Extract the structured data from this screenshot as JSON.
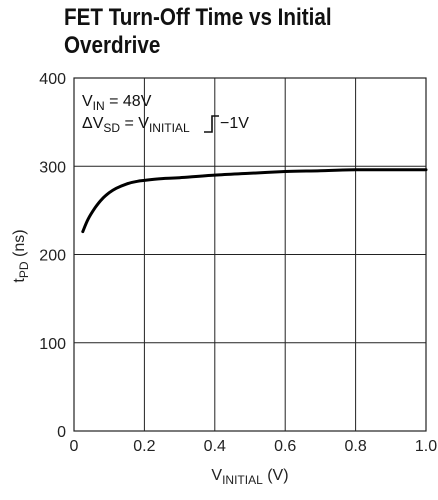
{
  "chart_data": {
    "type": "line",
    "title_lines": [
      "FET Turn-Off Time vs Initial",
      "Overdrive"
    ],
    "xlabel": {
      "main": "V",
      "sub": "INITIAL",
      "unit": " (V)"
    },
    "ylabel": {
      "main": "t",
      "sub": "PD",
      "unit": " (ns)"
    },
    "xlim": [
      0,
      1.0
    ],
    "ylim": [
      0,
      400
    ],
    "x_ticks": [
      {
        "value": 0,
        "label": "0"
      },
      {
        "value": 0.2,
        "label": "0.2"
      },
      {
        "value": 0.4,
        "label": "0.4"
      },
      {
        "value": 0.6,
        "label": "0.6"
      },
      {
        "value": 0.8,
        "label": "0.8"
      },
      {
        "value": 1.0,
        "label": "1.0"
      }
    ],
    "y_ticks": [
      {
        "value": 0,
        "label": "0"
      },
      {
        "value": 100,
        "label": "100"
      },
      {
        "value": 200,
        "label": "200"
      },
      {
        "value": 300,
        "label": "300"
      },
      {
        "value": 400,
        "label": "400"
      }
    ],
    "grid": true,
    "series": [
      {
        "x": [
          0.025,
          0.04,
          0.06,
          0.08,
          0.1,
          0.12,
          0.15,
          0.18,
          0.2,
          0.25,
          0.3,
          0.4,
          0.5,
          0.6,
          0.7,
          0.8,
          0.9,
          1.0
        ],
        "y": [
          226,
          240,
          253,
          263,
          270,
          275,
          280,
          283,
          284,
          286,
          287,
          290,
          292,
          294,
          295,
          296,
          296,
          296
        ]
      }
    ],
    "annotations": {
      "line1": {
        "main": "V",
        "sub": "IN",
        "rest": " = 48V"
      },
      "line2": {
        "prefix": "ΔV",
        "sub1": "SD",
        "mid": " = V",
        "sub2": "INITIAL",
        "suffix": "−1V"
      }
    },
    "colors": {
      "line": "#000000",
      "grid": "#222222",
      "text": "#222222"
    }
  }
}
